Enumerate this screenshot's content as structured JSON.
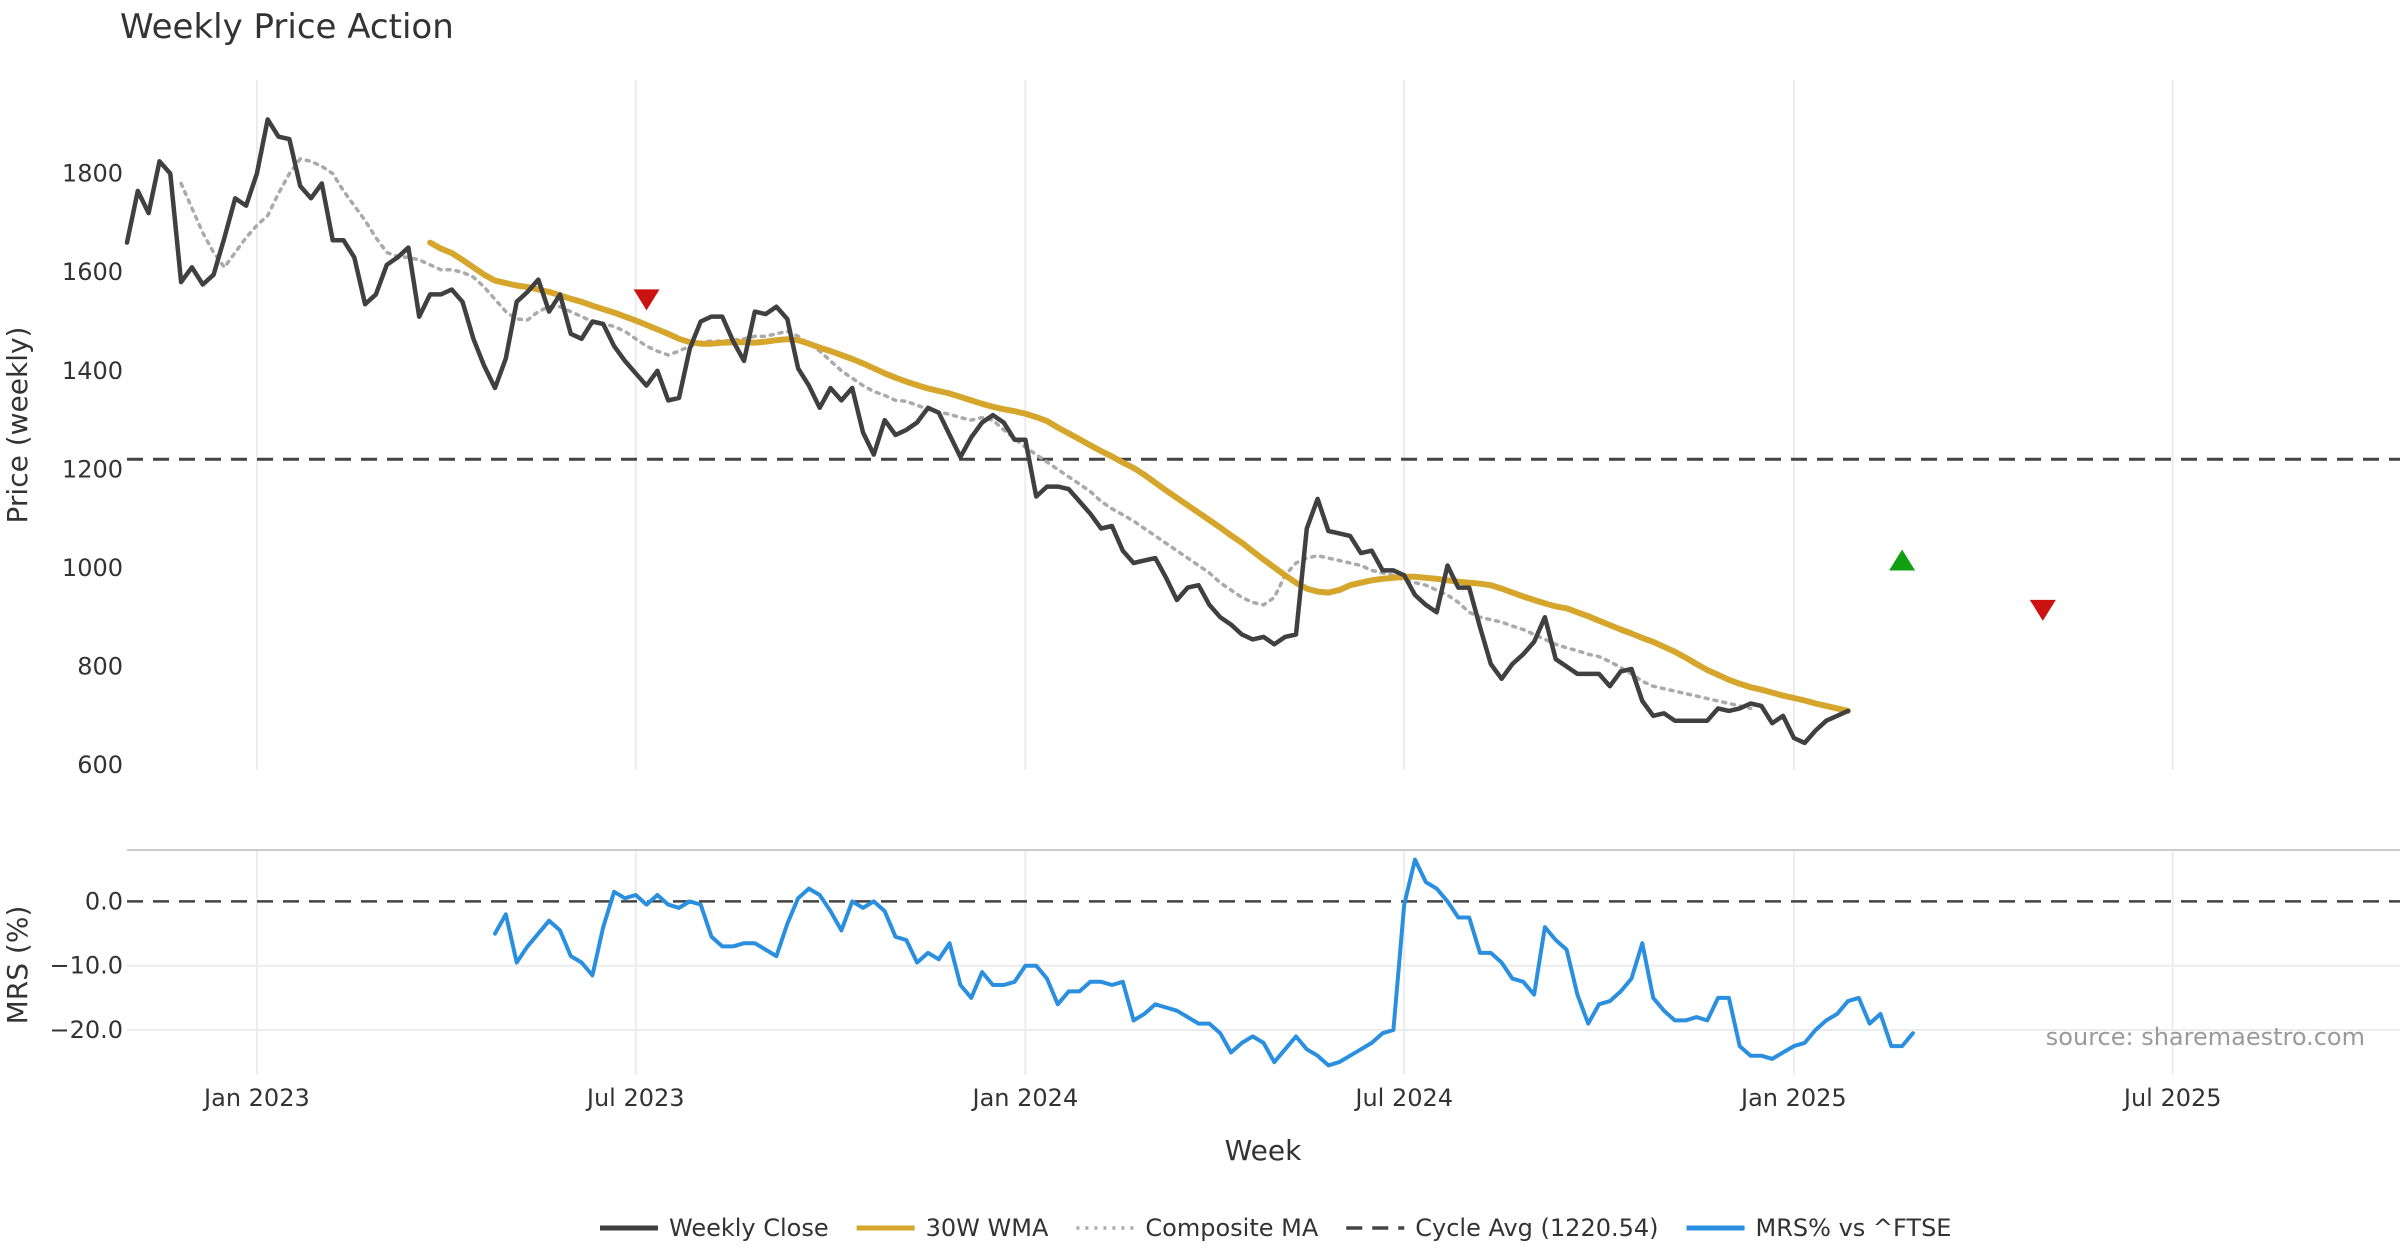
{
  "chart_data": [
    {
      "type": "line",
      "panel": "price",
      "title": "Weekly Price Action",
      "xlabel": "Week",
      "ylabel": "Price (weekly)",
      "x_ticks": [
        "Jan 2023",
        "Jul 2023",
        "Jan 2024",
        "Jul 2024",
        "Jan 2025",
        "Jul 2025"
      ],
      "x_tick_weeks": [
        12,
        47,
        83,
        118,
        154,
        189
      ],
      "y_ticks": [
        600,
        800,
        1000,
        1200,
        1400,
        1600,
        1800
      ],
      "y_tick_labels": [
        "600",
        "800",
        "1000",
        "1200",
        "1400",
        "1600",
        "1800"
      ],
      "ylim": [
        590,
        1990
      ],
      "xlim": [
        0,
        210
      ],
      "grid": "x",
      "series": [
        {
          "name": "Weekly Close",
          "color": "#404040",
          "style": "solid",
          "start_week": 0,
          "values": [
            1660,
            1765,
            1720,
            1825,
            1800,
            1580,
            1610,
            1575,
            1595,
            1670,
            1750,
            1735,
            1800,
            1910,
            1875,
            1870,
            1775,
            1750,
            1780,
            1665,
            1665,
            1630,
            1535,
            1555,
            1615,
            1630,
            1650,
            1510,
            1555,
            1555,
            1565,
            1540,
            1465,
            1410,
            1365,
            1425,
            1540,
            1560,
            1585,
            1520,
            1555,
            1475,
            1465,
            1500,
            1495,
            1450,
            1420,
            1395,
            1370,
            1400,
            1340,
            1345,
            1445,
            1500,
            1510,
            1510,
            1460,
            1420,
            1520,
            1515,
            1530,
            1505,
            1405,
            1370,
            1325,
            1365,
            1340,
            1365,
            1275,
            1230,
            1300,
            1270,
            1280,
            1295,
            1325,
            1315,
            1270,
            1225,
            1265,
            1295,
            1310,
            1295,
            1260,
            1260,
            1145,
            1165,
            1165,
            1160,
            1135,
            1110,
            1080,
            1085,
            1035,
            1010,
            1015,
            1020,
            980,
            935,
            960,
            965,
            925,
            900,
            885,
            865,
            855,
            860,
            845,
            860,
            865,
            1080,
            1140,
            1075,
            1070,
            1065,
            1030,
            1035,
            995,
            995,
            985,
            945,
            925,
            910,
            1005,
            960,
            960,
            880,
            805,
            775,
            805,
            825,
            850,
            900,
            815,
            800,
            785,
            785,
            785,
            760,
            790,
            795,
            730,
            700,
            705,
            690,
            690,
            690,
            690,
            715,
            710,
            715,
            725,
            720,
            685,
            700,
            655,
            645,
            670,
            690,
            700,
            710
          ]
        },
        {
          "name": "30W WMA",
          "color": "#D6A62C",
          "style": "solid",
          "start_week": 28,
          "values": [
            1660,
            1648,
            1639,
            1625,
            1610,
            1595,
            1583,
            1578,
            1573,
            1570,
            1565,
            1560,
            1553,
            1546,
            1540,
            1532,
            1525,
            1518,
            1510,
            1502,
            1493,
            1484,
            1475,
            1465,
            1458,
            1455,
            1455,
            1457,
            1458,
            1458,
            1457,
            1459,
            1462,
            1464,
            1462,
            1455,
            1447,
            1440,
            1432,
            1424,
            1415,
            1405,
            1395,
            1386,
            1378,
            1371,
            1364,
            1359,
            1354,
            1347,
            1340,
            1333,
            1327,
            1322,
            1318,
            1313,
            1306,
            1298,
            1285,
            1273,
            1261,
            1249,
            1237,
            1226,
            1214,
            1203,
            1189,
            1173,
            1157,
            1142,
            1127,
            1112,
            1097,
            1082,
            1066,
            1051,
            1034,
            1017,
            1001,
            985,
            970,
            958,
            952,
            950,
            955,
            965,
            970,
            975,
            978,
            980,
            982,
            982,
            980,
            978,
            975,
            972,
            970,
            968,
            965,
            958,
            950,
            942,
            935,
            928,
            922,
            918,
            910,
            902,
            893,
            884,
            875,
            867,
            858,
            850,
            840,
            830,
            818,
            805,
            793,
            783,
            773,
            765,
            758,
            753,
            747,
            741,
            736,
            731,
            725,
            720,
            715,
            710
          ]
        },
        {
          "name": "Composite MA",
          "color": "#AAAAAA",
          "style": "dotted",
          "start_week": 5,
          "values": [
            1780,
            1730,
            1680,
            1640,
            1610,
            1640,
            1670,
            1695,
            1715,
            1760,
            1800,
            1830,
            1825,
            1815,
            1800,
            1765,
            1735,
            1705,
            1670,
            1640,
            1632,
            1630,
            1625,
            1615,
            1605,
            1605,
            1600,
            1590,
            1570,
            1545,
            1520,
            1505,
            1503,
            1520,
            1530,
            1530,
            1520,
            1510,
            1500,
            1495,
            1490,
            1480,
            1465,
            1450,
            1440,
            1432,
            1440,
            1450,
            1458,
            1460,
            1460,
            1462,
            1465,
            1470,
            1470,
            1475,
            1480,
            1470,
            1455,
            1440,
            1420,
            1400,
            1385,
            1370,
            1358,
            1350,
            1340,
            1338,
            1330,
            1322,
            1316,
            1312,
            1305,
            1300,
            1305,
            1300,
            1280,
            1262,
            1245,
            1230,
            1215,
            1200,
            1185,
            1170,
            1155,
            1135,
            1120,
            1108,
            1095,
            1080,
            1065,
            1050,
            1035,
            1020,
            1005,
            990,
            970,
            955,
            940,
            930,
            925,
            940,
            985,
            1010,
            1020,
            1025,
            1020,
            1015,
            1010,
            1005,
            995,
            990,
            985,
            975,
            970,
            965,
            955,
            945,
            930,
            910,
            900,
            895,
            890,
            882,
            875,
            865,
            855,
            845,
            838,
            832,
            825,
            820,
            810,
            798,
            785,
            770,
            760,
            755,
            750,
            745,
            740,
            735,
            730,
            725,
            720,
            715
          ]
        },
        {
          "name": "Cycle Avg (1220.54)",
          "color": "#444444",
          "style": "dashed",
          "value": 1220.54
        }
      ],
      "annotations": [
        {
          "type": "triangle-down",
          "week": 48,
          "value": 1545,
          "color": "#CC1111"
        },
        {
          "type": "triangle-up",
          "week": 164,
          "value": 1015,
          "color": "#11A011"
        },
        {
          "type": "triangle-down",
          "week": 177,
          "value": 915,
          "color": "#CC1111"
        }
      ]
    },
    {
      "type": "line",
      "panel": "mrs",
      "ylabel": "MRS (%)",
      "y_ticks": [
        0,
        -10,
        -20
      ],
      "y_tick_labels": [
        "0.0",
        "−10.0",
        "−20.0"
      ],
      "ylim": [
        -27,
        8
      ],
      "xlim": [
        0,
        210
      ],
      "reference_line": 0,
      "series": [
        {
          "name": "MRS% vs ^FTSE",
          "color": "#2B8FE0",
          "style": "solid",
          "start_week": 34,
          "values": [
            -5,
            -2,
            -9.5,
            -7,
            -5,
            -3,
            -4.5,
            -8.5,
            -9.5,
            -11.5,
            -4,
            1.5,
            0.5,
            1,
            -0.5,
            1,
            -0.5,
            -1,
            0,
            -0.5,
            -5.5,
            -7,
            -7,
            -6.5,
            -6.5,
            -7.5,
            -8.5,
            -3.5,
            0.5,
            2,
            1,
            -1.5,
            -4.5,
            0,
            -1,
            0,
            -1.5,
            -5.5,
            -6,
            -9.5,
            -8,
            -9,
            -6.5,
            -13,
            -15,
            -11,
            -13,
            -13,
            -12.5,
            -10,
            -10,
            -12,
            -16,
            -14,
            -14,
            -12.5,
            -12.5,
            -13,
            -12.5,
            -18.5,
            -17.5,
            -16,
            -16.5,
            -17,
            -18,
            -19,
            -19,
            -20.5,
            -23.5,
            -22,
            -21,
            -22,
            -25,
            -23,
            -21,
            -23,
            -24,
            -25.5,
            -25,
            -24,
            -23,
            -22,
            -20.5,
            -20,
            -0.5,
            6.5,
            3,
            2,
            0,
            -2.5,
            -2.5,
            -8,
            -8,
            -9.5,
            -12,
            -12.5,
            -14.5,
            -4,
            -6,
            -7.5,
            -14.5,
            -19,
            -16,
            -15.5,
            -14,
            -12,
            -6.5,
            -15,
            -17,
            -18.5,
            -18.5,
            -18,
            -18.5,
            -15,
            -15,
            -22.5,
            -24,
            -24,
            -24.5,
            -23.5,
            -22.5,
            -22,
            -20,
            -18.5,
            -17.5,
            -15.5,
            -15,
            -19,
            -17.5,
            -22.5,
            -22.5,
            -20.5
          ]
        }
      ]
    }
  ],
  "legend": [
    {
      "label": "Weekly Close",
      "color": "#404040",
      "style": "solid"
    },
    {
      "label": "30W WMA",
      "color": "#D6A62C",
      "style": "solid"
    },
    {
      "label": "Composite MA",
      "color": "#AAAAAA",
      "style": "dotted"
    },
    {
      "label": "Cycle Avg (1220.54)",
      "color": "#444444",
      "style": "dashed"
    },
    {
      "label": "MRS% vs ^FTSE",
      "color": "#2B8FE0",
      "style": "solid"
    }
  ],
  "source": "source: sharemaestro.com"
}
